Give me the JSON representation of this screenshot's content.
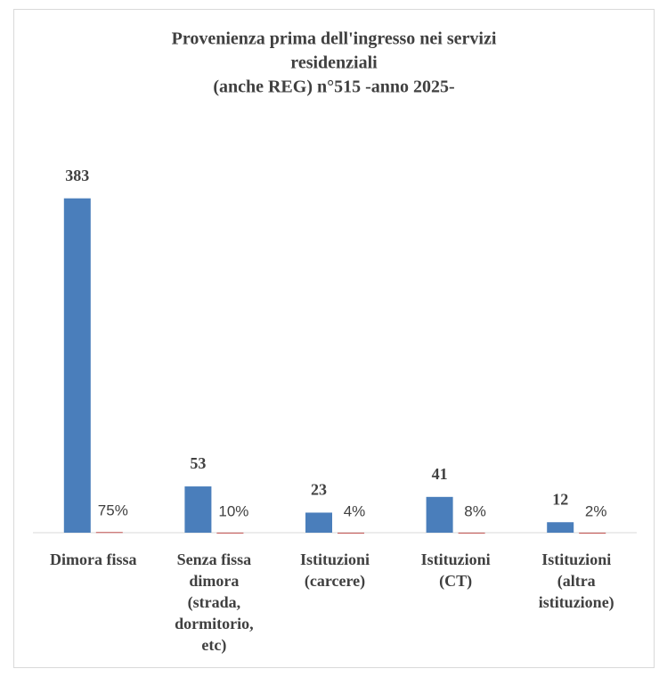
{
  "chart_data": {
    "type": "bar",
    "title": [
      "Provenienza prima dell'ingresso nei servizi",
      "residenziali",
      "(anche REG)  n°515   -anno 2025-"
    ],
    "categories": [
      "Dimora fissa",
      "Senza fissa dimora (strada, dormitorio, etc)",
      "Istituzioni (carcere)",
      "Istituzioni (CT)",
      "Istituzioni (altra istituzione)"
    ],
    "series": [
      {
        "color": "#4a7ebb",
        "values": [
          383,
          53,
          23,
          41,
          12
        ]
      },
      {
        "color": "#c0504d",
        "values": [
          0.75,
          0.1,
          0.04,
          0.08,
          0.02
        ],
        "value_labels": [
          "75%",
          "10%",
          "4%",
          "8%",
          "2%"
        ]
      }
    ],
    "ylim": [
      0,
      450
    ]
  }
}
